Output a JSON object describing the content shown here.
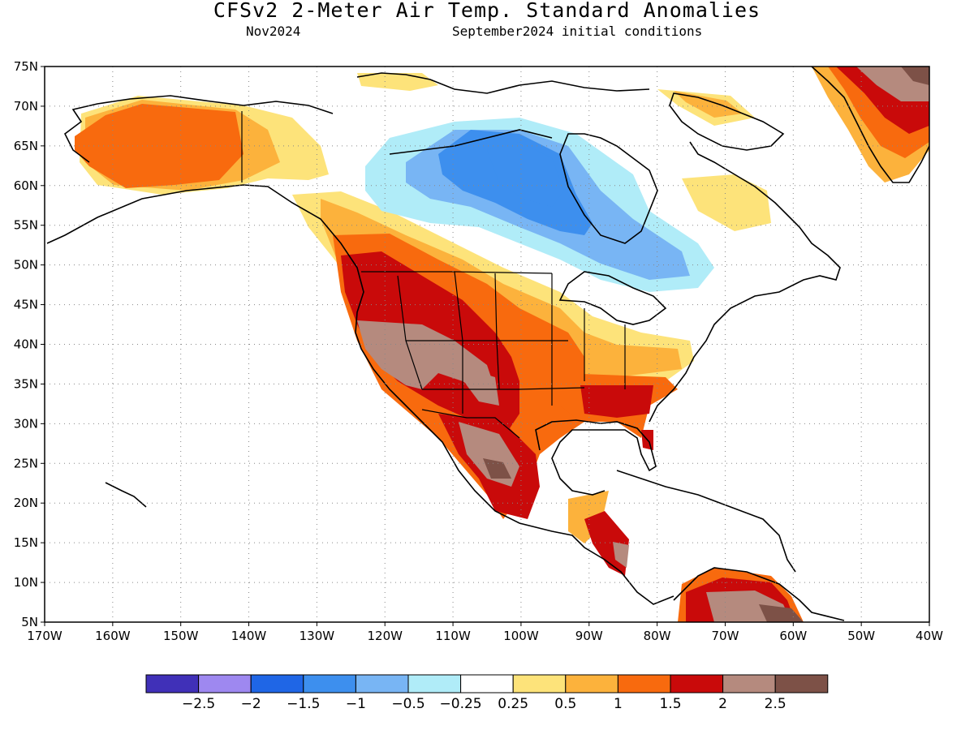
{
  "header": {
    "title": "CFSv2 2-Meter Air Temp. Standard Anomalies",
    "target_month": "Nov2024",
    "initial_conditions": "September2024 initial conditions"
  },
  "map": {
    "lon_range": [
      -170,
      -40
    ],
    "lat_range": [
      5,
      75
    ],
    "lon_ticks": [
      {
        "value": -170,
        "label": "170W"
      },
      {
        "value": -160,
        "label": "160W"
      },
      {
        "value": -150,
        "label": "150W"
      },
      {
        "value": -140,
        "label": "140W"
      },
      {
        "value": -130,
        "label": "130W"
      },
      {
        "value": -120,
        "label": "120W"
      },
      {
        "value": -110,
        "label": "110W"
      },
      {
        "value": -100,
        "label": "100W"
      },
      {
        "value": -90,
        "label": "90W"
      },
      {
        "value": -80,
        "label": "80W"
      },
      {
        "value": -70,
        "label": "70W"
      },
      {
        "value": -60,
        "label": "60W"
      },
      {
        "value": -50,
        "label": "50W"
      },
      {
        "value": -40,
        "label": "40W"
      }
    ],
    "lat_ticks": [
      {
        "value": 75,
        "label": "75N"
      },
      {
        "value": 70,
        "label": "70N"
      },
      {
        "value": 65,
        "label": "65N"
      },
      {
        "value": 60,
        "label": "60N"
      },
      {
        "value": 55,
        "label": "55N"
      },
      {
        "value": 50,
        "label": "50N"
      },
      {
        "value": 45,
        "label": "45N"
      },
      {
        "value": 40,
        "label": "40N"
      },
      {
        "value": 35,
        "label": "35N"
      },
      {
        "value": 30,
        "label": "30N"
      },
      {
        "value": 25,
        "label": "25N"
      },
      {
        "value": 20,
        "label": "20N"
      },
      {
        "value": 15,
        "label": "15N"
      },
      {
        "value": 10,
        "label": "10N"
      },
      {
        "value": 5,
        "label": "5N"
      }
    ],
    "gridlines": "dotted"
  },
  "colorbar": {
    "colors": [
      "#4030b8",
      "#9e88f0",
      "#1f66e6",
      "#3d8fee",
      "#78b5f4",
      "#b0ecf8",
      "#ffffff",
      "#fde37a",
      "#fcb23c",
      "#f86a0e",
      "#c90a0a",
      "#b58a7e",
      "#7d5147"
    ],
    "labels": [
      "-2.5",
      "-2",
      "-1.5",
      "-1",
      "-0.5",
      "-0.25",
      "0.25",
      "0.5",
      "1",
      "1.5",
      "2",
      "2.5"
    ]
  },
  "anomaly_regions": [
    {
      "region": "Alaska",
      "value": 1.5
    },
    {
      "region": "Yukon",
      "value": 0.5
    },
    {
      "region": "Central Canada",
      "value": -1
    },
    {
      "region": "Hudson Bay west",
      "value": -1.5
    },
    {
      "region": "Labrador",
      "value": 0.25
    },
    {
      "region": "Greenland",
      "value": 2
    },
    {
      "region": "Pacific Northwest",
      "value": 2
    },
    {
      "region": "Great Basin",
      "value": 2.5
    },
    {
      "region": "Southern Plains",
      "value": 1.5
    },
    {
      "region": "Southeast US",
      "value": 1
    },
    {
      "region": "Northern Mexico",
      "value": 2.5
    },
    {
      "region": "Northern South America",
      "value": 2.5
    }
  ]
}
